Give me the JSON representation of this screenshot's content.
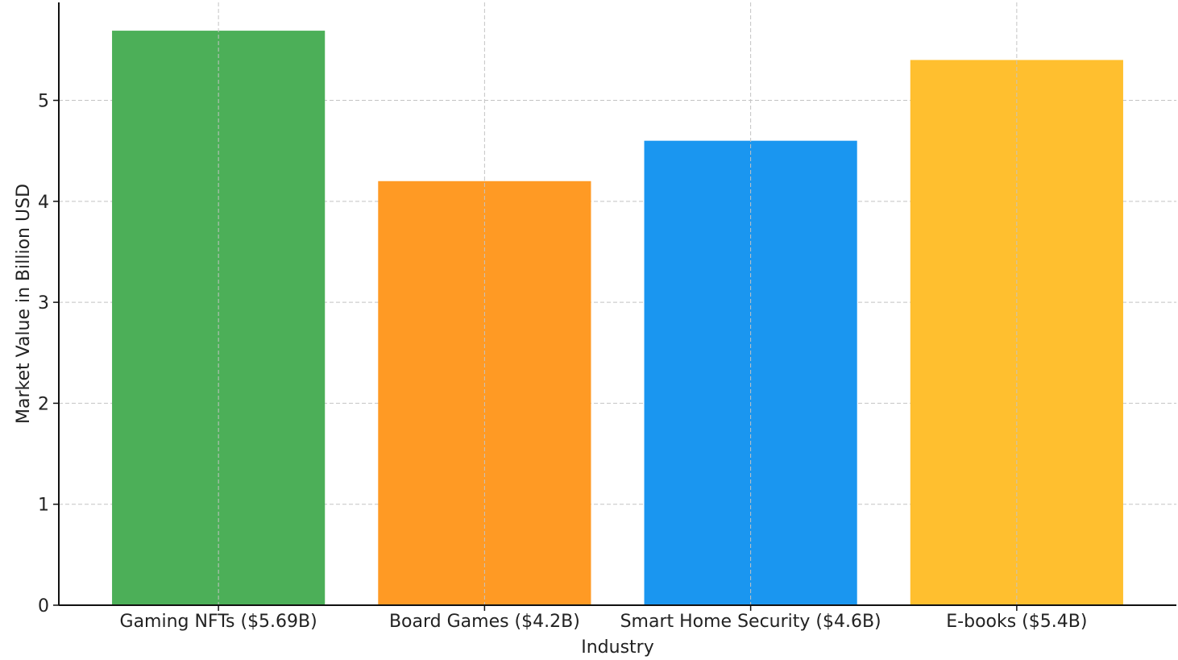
{
  "chart_data": {
    "type": "bar",
    "title": "",
    "xlabel": "Industry",
    "ylabel": "Market Value in Billion USD",
    "categories": [
      "Gaming NFTs ($5.69B)",
      "Board Games ($4.2B)",
      "Smart Home Security ($4.6B)",
      "E-books ($5.4B)"
    ],
    "values": [
      5.69,
      4.2,
      4.6,
      5.4
    ],
    "colors": [
      "#4caf58",
      "#ff9a24",
      "#1a96f0",
      "#ffbf2f"
    ],
    "ylim": [
      0,
      5.97
    ],
    "yticks": [
      0,
      1,
      2,
      3,
      4,
      5
    ],
    "grid": true,
    "legend": "none"
  }
}
